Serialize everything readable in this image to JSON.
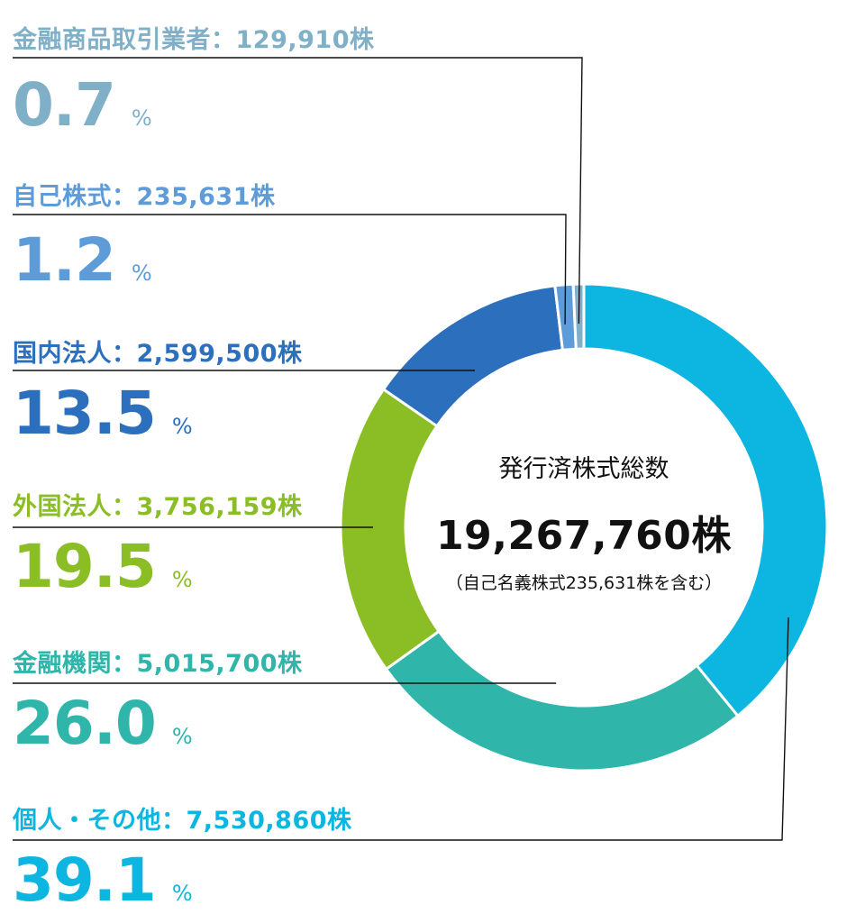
{
  "chart_data": {
    "type": "pie",
    "categories": [
      "個人・その他",
      "金融機関",
      "外国法人",
      "国内法人",
      "自己株式",
      "金融商品取引業者"
    ],
    "shares": [
      "7,530,860株",
      "5,015,700株",
      "3,756,159株",
      "2,599,500株",
      "235,631株",
      "129,910株"
    ],
    "values": [
      39.1,
      26.0,
      19.5,
      13.5,
      1.2,
      0.7
    ],
    "unit": "%",
    "colors": [
      "#0db6e0",
      "#2fb5aa",
      "#8bbd25",
      "#2b6fbd",
      "#5d9bd9",
      "#7fb0c8"
    ],
    "center": {
      "label": "発行済株式総数",
      "value": "19,267,760株",
      "note": "（自己名義株式235,631株を含む）"
    }
  }
}
